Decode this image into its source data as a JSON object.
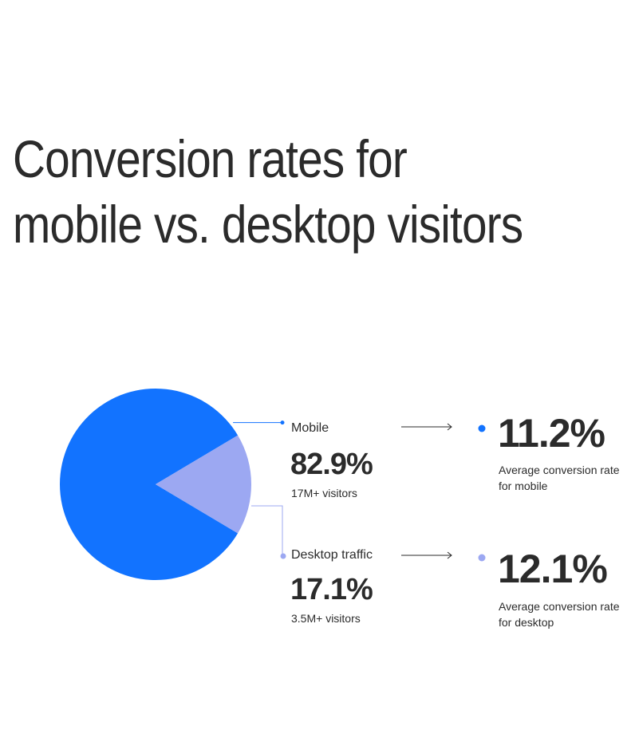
{
  "title": "Conversion rates for mobile vs. desktop visitors",
  "colors": {
    "mobile": "#1273ff",
    "desktop": "#9ca8f2",
    "text": "#2b2b2b",
    "arrow": "#2b2b2b"
  },
  "chart_data": {
    "type": "pie",
    "title": "Conversion rates for mobile vs. desktop visitors",
    "slices": [
      {
        "label": "Mobile",
        "value": 82.9,
        "value_label": "82.9%",
        "visitors": "17M+ visitors"
      },
      {
        "label": "Desktop traffic",
        "value": 17.1,
        "value_label": "17.1%",
        "visitors": "3.5M+ visitors"
      }
    ]
  },
  "conversion": [
    {
      "rate": "11.2%",
      "line1": "Average conversion rate",
      "line2": "for mobile"
    },
    {
      "rate": "12.1%",
      "line1": "Average conversion rate",
      "line2": "for desktop"
    }
  ]
}
